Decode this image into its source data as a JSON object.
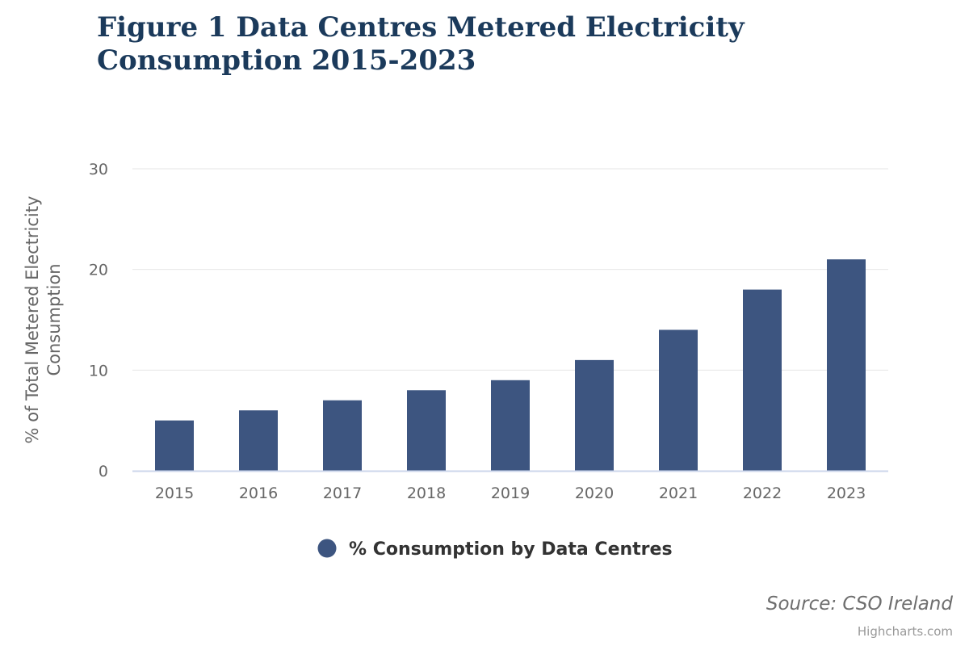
{
  "chart_data": {
    "type": "bar",
    "title": "Figure 1 Data Centres Metered Electricity Consumption 2015-2023",
    "categories": [
      "2015",
      "2016",
      "2017",
      "2018",
      "2019",
      "2020",
      "2021",
      "2022",
      "2023"
    ],
    "series": [
      {
        "name": "% Consumption by Data Centres",
        "values": [
          5,
          6,
          7,
          8,
          9,
          11,
          14,
          18,
          21
        ],
        "color": "#3d5580"
      }
    ],
    "ylabel": "% of Total Metered Electricity Consumption",
    "xlabel": "",
    "ylim": [
      0,
      30
    ],
    "yticks": [
      "0",
      "10",
      "20",
      "30"
    ],
    "grid": true,
    "legend_position": "bottom-center"
  },
  "source": "Source: CSO Ireland",
  "credit": "Highcharts.com"
}
